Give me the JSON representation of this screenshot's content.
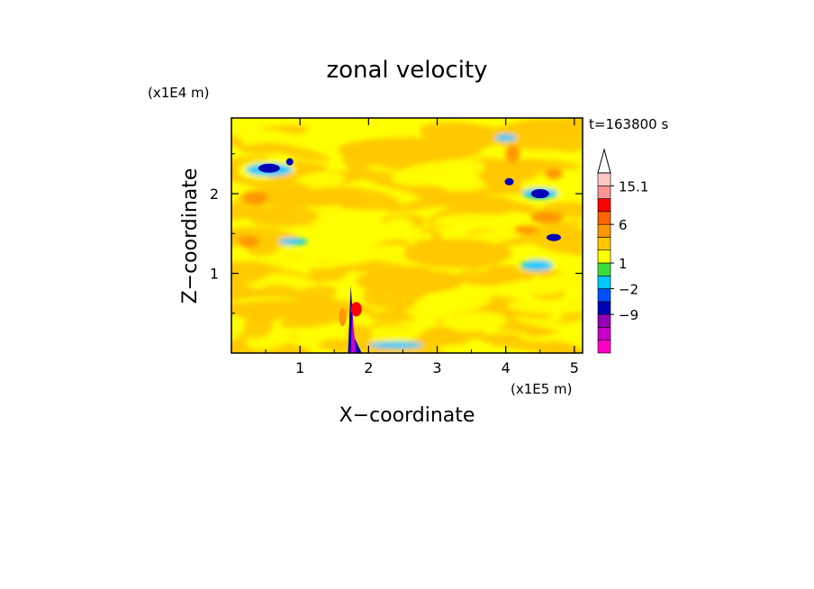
{
  "chart_data": {
    "type": "heatmap",
    "title": "zonal velocity",
    "xlabel": "X−coordinate",
    "ylabel": "Z−coordinate",
    "x_unit": "(x1E5 m)",
    "y_unit": "(x1E4 m)",
    "time_label": "t=163800 s",
    "xlim": [
      0,
      5.12
    ],
    "ylim": [
      0,
      2.95
    ],
    "x_ticks": [
      "1",
      "2",
      "3",
      "4",
      "5"
    ],
    "x_tick_values": [
      1,
      2,
      3,
      4,
      5
    ],
    "y_ticks": [
      "1",
      "2"
    ],
    "y_tick_values": [
      1,
      2
    ],
    "colorbar": {
      "levels": [
        -15,
        -12,
        -9,
        -6,
        -2,
        -1,
        1,
        2,
        4,
        6,
        9,
        12,
        15.1
      ],
      "tick_labels": [
        "15.1",
        "6",
        "1",
        "−2",
        "−9"
      ],
      "tick_values": [
        15.1,
        6,
        1,
        -2,
        -9
      ],
      "colors": [
        "#ff00c8",
        "#c800c8",
        "#9600b4",
        "#0000b4",
        "#0050ff",
        "#00c8ff",
        "#3cdc3c",
        "#ffff00",
        "#ffc800",
        "#ff9600",
        "#ff6400",
        "#ff0000",
        "#ff9696",
        "#ffc8c8"
      ]
    },
    "field_features": [
      {
        "kind": "green_background",
        "value": 1.5
      },
      {
        "kind": "yellow_band",
        "x_center": 2.6,
        "z_center": 2.6,
        "value": 2.5
      },
      {
        "kind": "yellow_band",
        "x_center": 0.9,
        "z_center": 1.9,
        "value": 2.5
      },
      {
        "kind": "orange_blob",
        "x_center": 0.35,
        "z_center": 1.95,
        "value": 6
      },
      {
        "kind": "orange_blob",
        "x_center": 0.25,
        "z_center": 1.4,
        "value": 6
      },
      {
        "kind": "orange_blob",
        "x_center": 4.6,
        "z_center": 1.7,
        "value": 6
      },
      {
        "kind": "blue_blob",
        "x_center": 0.55,
        "z_center": 2.3,
        "value": -6
      },
      {
        "kind": "blue_blob",
        "x_center": 4.5,
        "z_center": 2.0,
        "value": -6
      },
      {
        "kind": "blue_blob",
        "x_center": 4.7,
        "z_center": 1.45,
        "value": -6
      },
      {
        "kind": "cyan_blob",
        "x_center": 4.45,
        "z_center": 1.1,
        "value": -2
      },
      {
        "kind": "mountain_jet",
        "x_center": 1.78,
        "z_center": 0.2,
        "value": -12
      },
      {
        "kind": "red_spot",
        "x_center": 1.82,
        "z_center": 0.55,
        "value": 12
      }
    ]
  }
}
